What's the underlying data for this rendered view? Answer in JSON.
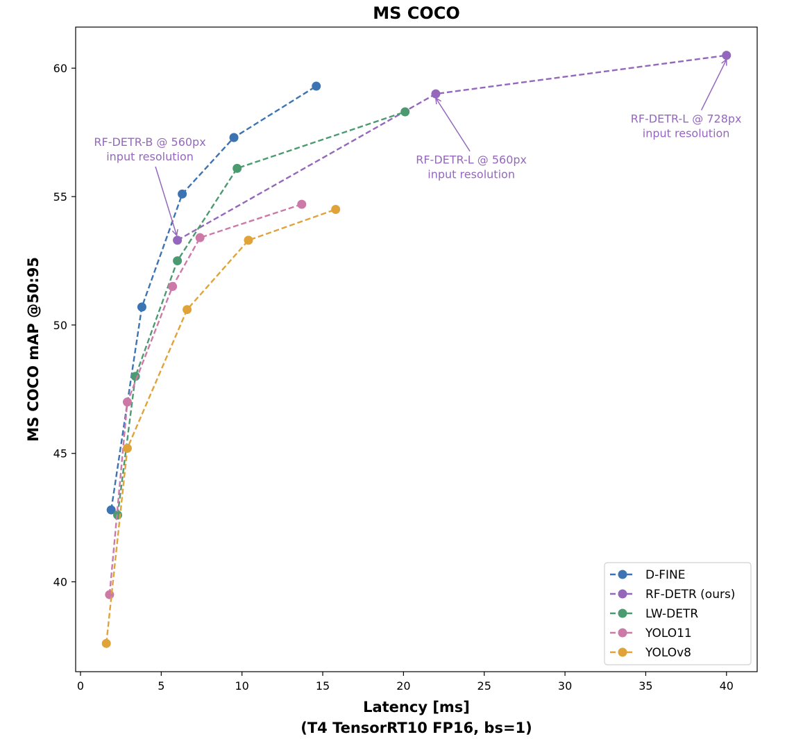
{
  "chart_data": {
    "type": "line",
    "title": "MS COCO",
    "xlabel_line1": "Latency [ms]",
    "xlabel_line2": "(T4 TensorRT10 FP16, bs=1)",
    "ylabel": "MS COCO mAP @50:95",
    "xlim": [
      -0.3,
      41.9
    ],
    "ylim": [
      36.5,
      61.6
    ],
    "xticks": [
      0,
      5,
      10,
      15,
      20,
      25,
      30,
      35,
      40
    ],
    "xtick_labels": [
      "0",
      "5",
      "10",
      "15",
      "20",
      "25",
      "30",
      "35",
      "40"
    ],
    "yticks": [
      40,
      45,
      50,
      55,
      60
    ],
    "ytick_labels": [
      "40",
      "45",
      "50",
      "55",
      "60"
    ],
    "legend_position": "lower-right",
    "series": [
      {
        "name": "D-FINE",
        "color": "#3c73b3",
        "points": [
          [
            1.9,
            42.8
          ],
          [
            3.8,
            50.7
          ],
          [
            6.3,
            55.1
          ],
          [
            9.5,
            57.3
          ],
          [
            14.6,
            59.3
          ]
        ]
      },
      {
        "name": "RF-DETR (ours)",
        "color": "#9467bd",
        "points": [
          [
            6.0,
            53.3
          ],
          [
            22.0,
            59.0
          ],
          [
            40.0,
            60.5
          ]
        ]
      },
      {
        "name": "LW-DETR",
        "color": "#4c9a70",
        "points": [
          [
            2.3,
            42.6
          ],
          [
            3.4,
            48.0
          ],
          [
            6.0,
            52.5
          ],
          [
            9.7,
            56.1
          ],
          [
            20.1,
            58.3
          ]
        ]
      },
      {
        "name": "YOLO11",
        "color": "#cc79a7",
        "points": [
          [
            1.8,
            39.5
          ],
          [
            2.9,
            47.0
          ],
          [
            5.7,
            51.5
          ],
          [
            7.4,
            53.4
          ],
          [
            13.7,
            54.7
          ]
        ]
      },
      {
        "name": "YOLOv8",
        "color": "#e0a33a",
        "points": [
          [
            1.6,
            37.6
          ],
          [
            2.9,
            45.2
          ],
          [
            6.6,
            50.6
          ],
          [
            10.4,
            53.3
          ],
          [
            15.8,
            54.5
          ]
        ]
      }
    ],
    "annotations": [
      {
        "line1": "RF-DETR-B @ 560px",
        "line2": "input resolution",
        "color": "#9467bd",
        "text_at": [
          4.3,
          56.6
        ],
        "arrow_to": [
          6.0,
          53.3
        ]
      },
      {
        "line1": "RF-DETR-L @ 560px",
        "line2": "input resolution",
        "color": "#9467bd",
        "text_at": [
          24.2,
          55.9
        ],
        "arrow_to": [
          22.0,
          59.0
        ]
      },
      {
        "line1": "RF-DETR-L @ 728px",
        "line2": "input resolution",
        "color": "#9467bd",
        "text_at": [
          37.5,
          57.5
        ],
        "arrow_to": [
          40.0,
          60.5
        ]
      }
    ]
  }
}
